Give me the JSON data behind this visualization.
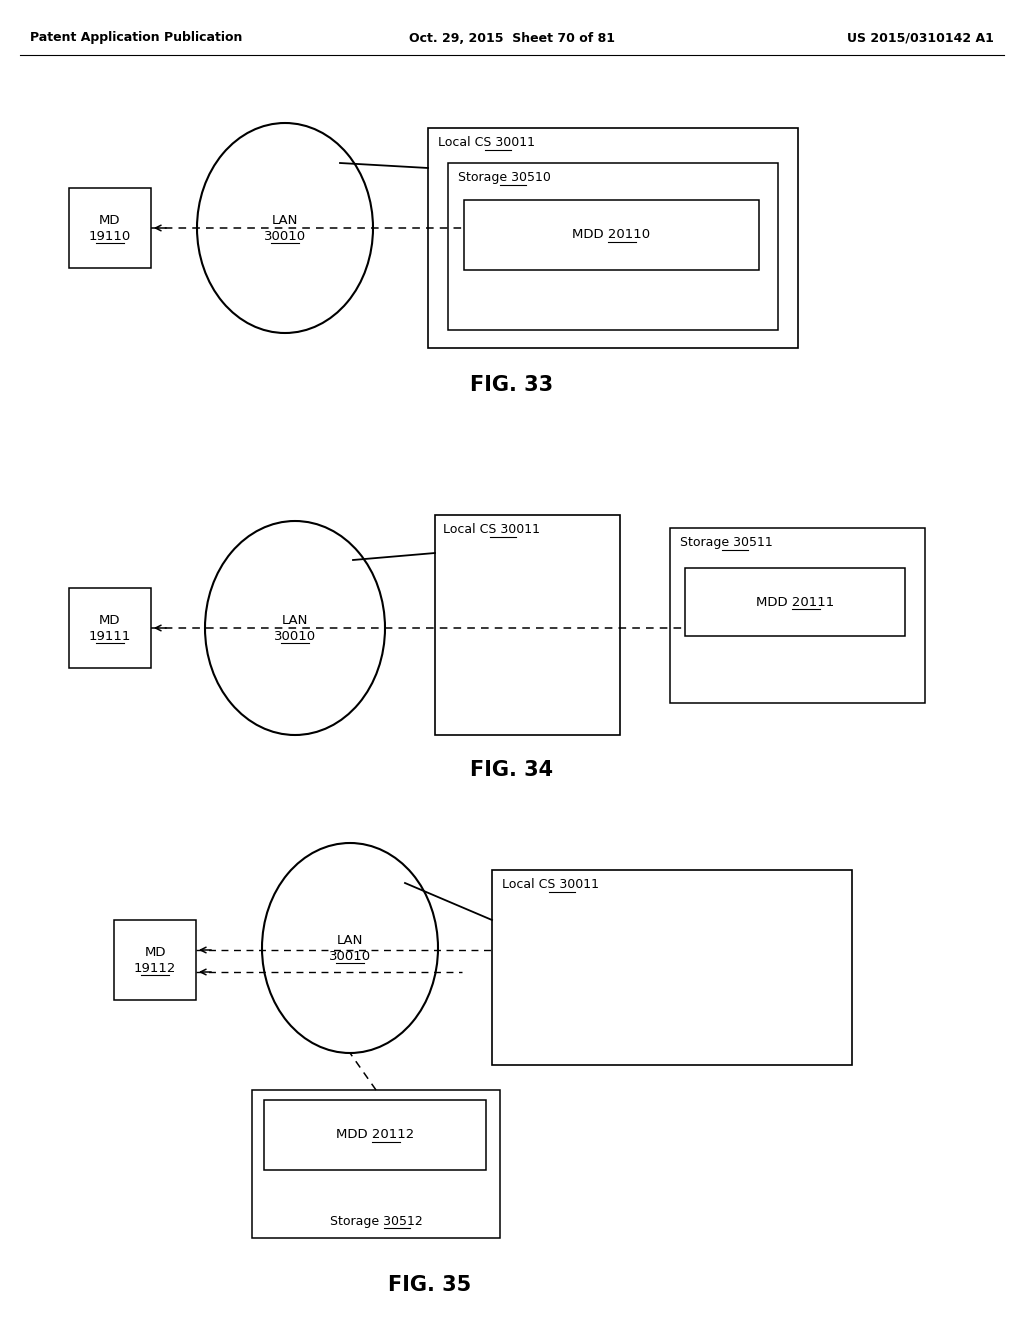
{
  "bg_color": "#ffffff",
  "header_left": "Patent Application Publication",
  "header_middle": "Oct. 29, 2015  Sheet 70 of 81",
  "header_right": "US 2015/0310142 A1",
  "fig33": {
    "label": "FIG. 33",
    "md_line1": "MD",
    "md_line2": "19110",
    "lan_line1": "LAN",
    "lan_line2": "30010",
    "localcs_label": "Local CS ",
    "localcs_num": "30011",
    "storage_label": "Storage ",
    "storage_num": "30510",
    "mdd_label": "MDD ",
    "mdd_num": "20110"
  },
  "fig34": {
    "label": "FIG. 34",
    "md_line1": "MD",
    "md_line2": "19111",
    "lan_line1": "LAN",
    "lan_line2": "30010",
    "localcs_label": "Local CS ",
    "localcs_num": "30011",
    "storage_label": "Storage ",
    "storage_num": "30511",
    "mdd_label": "MDD ",
    "mdd_num": "20111"
  },
  "fig35": {
    "label": "FIG. 35",
    "md_line1": "MD",
    "md_line2": "19112",
    "lan_line1": "LAN",
    "lan_line2": "30010",
    "localcs_label": "Local CS ",
    "localcs_num": "30011",
    "storage_label": "Storage ",
    "storage_num": "30512",
    "mdd_label": "MDD ",
    "mdd_num": "20112"
  }
}
